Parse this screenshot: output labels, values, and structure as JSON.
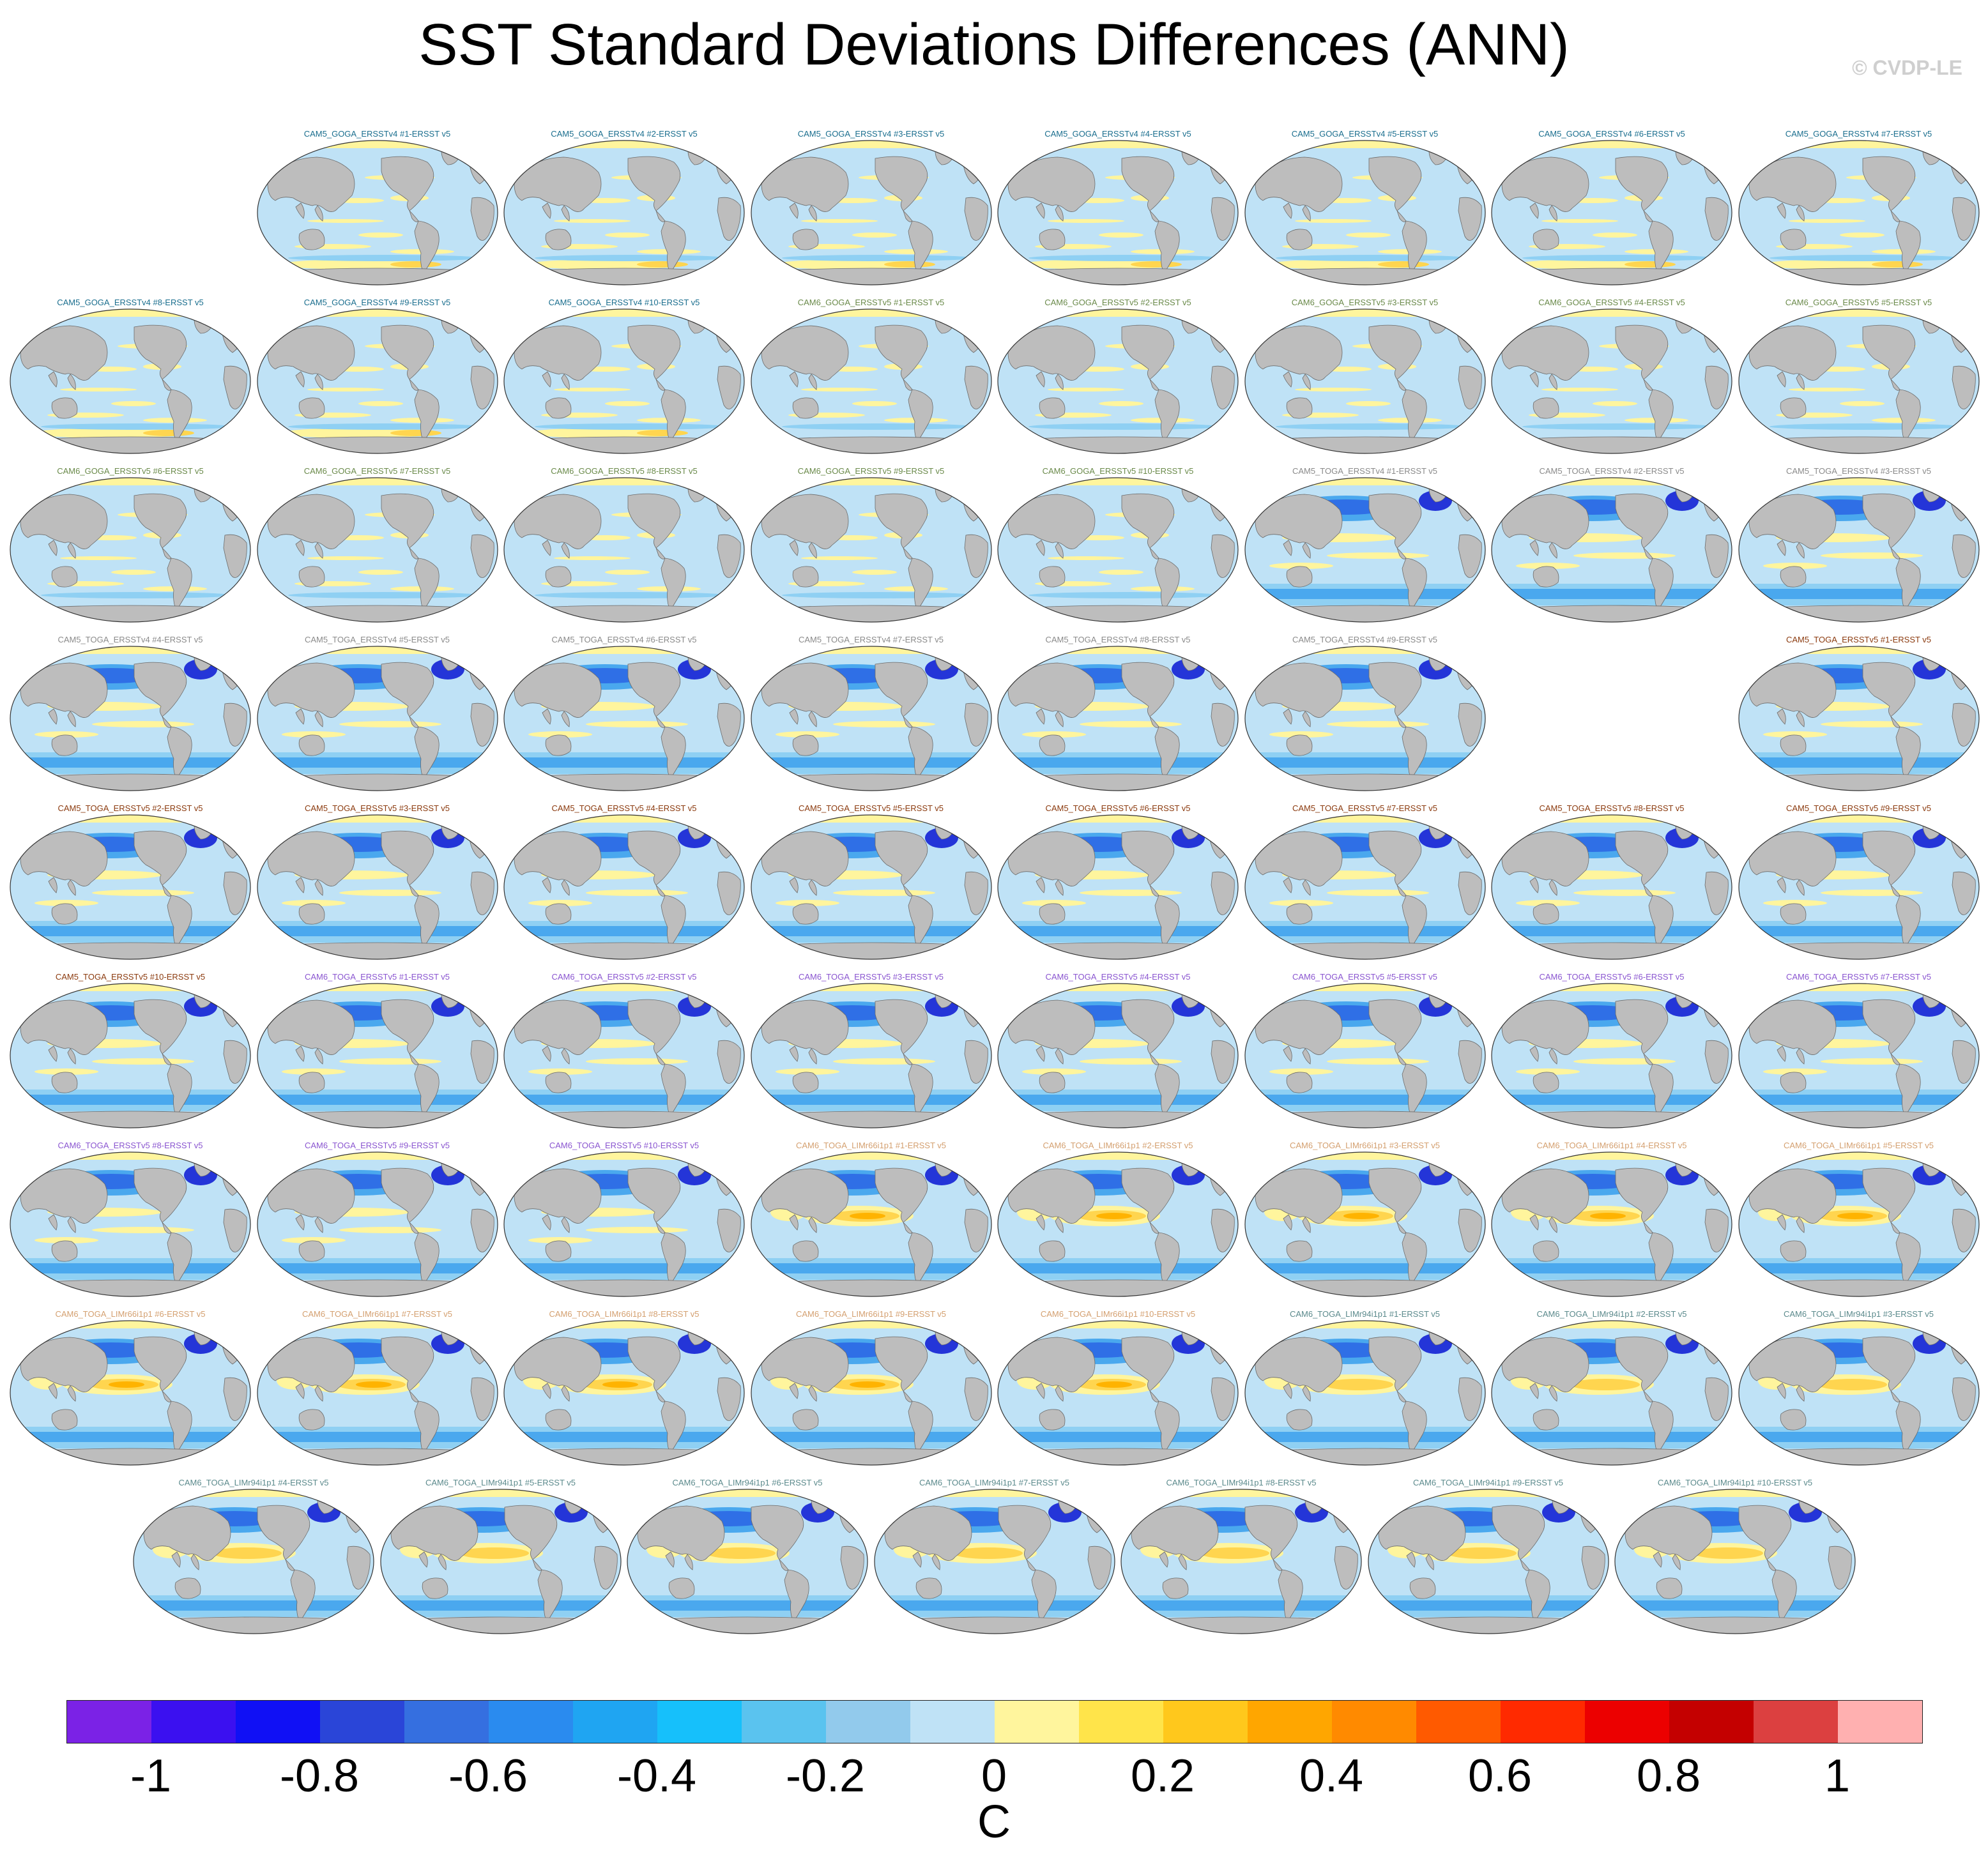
{
  "title": "SST Standard Deviations Differences (ANN)",
  "credit": "© CVDP-LE",
  "colors": {
    "ocean_base": "#bfe2f6",
    "land": "#bdbdbd",
    "positive_weak": "#fff59d",
    "positive_mid": "#ffd54f",
    "positive_strong": "#ffb300",
    "negative_weak": "#8fd0f3",
    "negative_mid": "#4aa8ee",
    "negative_strong": "#2f6fe6",
    "negative_deep": "#2435d8",
    "title_cam5_goga_v4": "#1a6e8e",
    "title_cam6_goga_v5": "#6a8a4a",
    "title_cam5_toga_v4": "#8a8a8a",
    "title_cam5_toga_v5": "#8b3a0e",
    "title_cam6_toga_v5": "#8a55d0",
    "title_cam6_toga_limr66": "#d4a070",
    "title_cam6_toga_limr94": "#5b8a8c"
  },
  "panels": [
    {
      "title": "CAM5_GOGA_ERSSTv4 #1-ERSST v5",
      "group": "cam5_goga_v4"
    },
    {
      "title": "CAM5_GOGA_ERSSTv4 #2-ERSST v5",
      "group": "cam5_goga_v4"
    },
    {
      "title": "CAM5_GOGA_ERSSTv4 #3-ERSST v5",
      "group": "cam5_goga_v4"
    },
    {
      "title": "CAM5_GOGA_ERSSTv4 #4-ERSST v5",
      "group": "cam5_goga_v4"
    },
    {
      "title": "CAM5_GOGA_ERSSTv4 #5-ERSST v5",
      "group": "cam5_goga_v4"
    },
    {
      "title": "CAM5_GOGA_ERSSTv4 #6-ERSST v5",
      "group": "cam5_goga_v4"
    },
    {
      "title": "CAM5_GOGA_ERSSTv4 #7-ERSST v5",
      "group": "cam5_goga_v4"
    },
    {
      "title": "CAM5_GOGA_ERSSTv4 #8-ERSST v5",
      "group": "cam5_goga_v4"
    },
    {
      "title": "CAM5_GOGA_ERSSTv4 #9-ERSST v5",
      "group": "cam5_goga_v4"
    },
    {
      "title": "CAM5_GOGA_ERSSTv4 #10-ERSST v5",
      "group": "cam5_goga_v4"
    },
    {
      "title": "CAM6_GOGA_ERSSTv5 #1-ERSST v5",
      "group": "cam6_goga_v5"
    },
    {
      "title": "CAM6_GOGA_ERSSTv5 #2-ERSST v5",
      "group": "cam6_goga_v5"
    },
    {
      "title": "CAM6_GOGA_ERSSTv5 #3-ERSST v5",
      "group": "cam6_goga_v5"
    },
    {
      "title": "CAM6_GOGA_ERSSTv5 #4-ERSST v5",
      "group": "cam6_goga_v5"
    },
    {
      "title": "CAM6_GOGA_ERSSTv5 #5-ERSST v5",
      "group": "cam6_goga_v5"
    },
    {
      "title": "CAM6_GOGA_ERSSTv5 #6-ERSST v5",
      "group": "cam6_goga_v5"
    },
    {
      "title": "CAM6_GOGA_ERSSTv5 #7-ERSST v5",
      "group": "cam6_goga_v5"
    },
    {
      "title": "CAM6_GOGA_ERSSTv5 #8-ERSST v5",
      "group": "cam6_goga_v5"
    },
    {
      "title": "CAM6_GOGA_ERSSTv5 #9-ERSST v5",
      "group": "cam6_goga_v5"
    },
    {
      "title": "CAM6_GOGA_ERSSTv5 #10-ERSST v5",
      "group": "cam6_goga_v5"
    },
    {
      "title": "CAM5_TOGA_ERSSTv4 #1-ERSST v5",
      "group": "cam5_toga_v4"
    },
    {
      "title": "CAM5_TOGA_ERSSTv4 #2-ERSST v5",
      "group": "cam5_toga_v4"
    },
    {
      "title": "CAM5_TOGA_ERSSTv4 #3-ERSST v5",
      "group": "cam5_toga_v4"
    },
    {
      "title": "CAM5_TOGA_ERSSTv4 #4-ERSST v5",
      "group": "cam5_toga_v4"
    },
    {
      "title": "CAM5_TOGA_ERSSTv4 #5-ERSST v5",
      "group": "cam5_toga_v4"
    },
    {
      "title": "CAM5_TOGA_ERSSTv4 #6-ERSST v5",
      "group": "cam5_toga_v4"
    },
    {
      "title": "CAM5_TOGA_ERSSTv4 #7-ERSST v5",
      "group": "cam5_toga_v4"
    },
    {
      "title": "CAM5_TOGA_ERSSTv4 #8-ERSST v5",
      "group": "cam5_toga_v4"
    },
    {
      "title": "CAM5_TOGA_ERSSTv4 #9-ERSST v5",
      "group": "cam5_toga_v4"
    },
    {
      "title": "CAM5_TOGA_ERSSTv5 #1-ERSST v5",
      "group": "cam5_toga_v5"
    },
    {
      "title": "CAM5_TOGA_ERSSTv5 #2-ERSST v5",
      "group": "cam5_toga_v5"
    },
    {
      "title": "CAM5_TOGA_ERSSTv5 #3-ERSST v5",
      "group": "cam5_toga_v5"
    },
    {
      "title": "CAM5_TOGA_ERSSTv5 #4-ERSST v5",
      "group": "cam5_toga_v5"
    },
    {
      "title": "CAM5_TOGA_ERSSTv5 #5-ERSST v5",
      "group": "cam5_toga_v5"
    },
    {
      "title": "CAM5_TOGA_ERSSTv5 #6-ERSST v5",
      "group": "cam5_toga_v5"
    },
    {
      "title": "CAM5_TOGA_ERSSTv5 #7-ERSST v5",
      "group": "cam5_toga_v5"
    },
    {
      "title": "CAM5_TOGA_ERSSTv5 #8-ERSST v5",
      "group": "cam5_toga_v5"
    },
    {
      "title": "CAM5_TOGA_ERSSTv5 #9-ERSST v5",
      "group": "cam5_toga_v5"
    },
    {
      "title": "CAM5_TOGA_ERSSTv5 #10-ERSST v5",
      "group": "cam5_toga_v5"
    },
    {
      "title": "CAM6_TOGA_ERSSTv5 #1-ERSST v5",
      "group": "cam6_toga_v5"
    },
    {
      "title": "CAM6_TOGA_ERSSTv5 #2-ERSST v5",
      "group": "cam6_toga_v5"
    },
    {
      "title": "CAM6_TOGA_ERSSTv5 #3-ERSST v5",
      "group": "cam6_toga_v5"
    },
    {
      "title": "CAM6_TOGA_ERSSTv5 #4-ERSST v5",
      "group": "cam6_toga_v5"
    },
    {
      "title": "CAM6_TOGA_ERSSTv5 #5-ERSST v5",
      "group": "cam6_toga_v5"
    },
    {
      "title": "CAM6_TOGA_ERSSTv5 #6-ERSST v5",
      "group": "cam6_toga_v5"
    },
    {
      "title": "CAM6_TOGA_ERSSTv5 #7-ERSST v5",
      "group": "cam6_toga_v5"
    },
    {
      "title": "CAM6_TOGA_ERSSTv5 #8-ERSST v5",
      "group": "cam6_toga_v5"
    },
    {
      "title": "CAM6_TOGA_ERSSTv5 #9-ERSST v5",
      "group": "cam6_toga_v5"
    },
    {
      "title": "CAM6_TOGA_ERSSTv5 #10-ERSST v5",
      "group": "cam6_toga_v5"
    },
    {
      "title": "CAM6_TOGA_LIMr66i1p1 #1-ERSST v5",
      "group": "cam6_toga_limr66"
    },
    {
      "title": "CAM6_TOGA_LIMr66i1p1 #2-ERSST v5",
      "group": "cam6_toga_limr66"
    },
    {
      "title": "CAM6_TOGA_LIMr66i1p1 #3-ERSST v5",
      "group": "cam6_toga_limr66"
    },
    {
      "title": "CAM6_TOGA_LIMr66i1p1 #4-ERSST v5",
      "group": "cam6_toga_limr66"
    },
    {
      "title": "CAM6_TOGA_LIMr66i1p1 #5-ERSST v5",
      "group": "cam6_toga_limr66"
    },
    {
      "title": "CAM6_TOGA_LIMr66i1p1 #6-ERSST v5",
      "group": "cam6_toga_limr66"
    },
    {
      "title": "CAM6_TOGA_LIMr66i1p1 #7-ERSST v5",
      "group": "cam6_toga_limr66"
    },
    {
      "title": "CAM6_TOGA_LIMr66i1p1 #8-ERSST v5",
      "group": "cam6_toga_limr66"
    },
    {
      "title": "CAM6_TOGA_LIMr66i1p1 #9-ERSST v5",
      "group": "cam6_toga_limr66"
    },
    {
      "title": "CAM6_TOGA_LIMr66i1p1 #10-ERSST v5",
      "group": "cam6_toga_limr66"
    },
    {
      "title": "CAM6_TOGA_LIMr94i1p1 #1-ERSST v5",
      "group": "cam6_toga_limr94"
    },
    {
      "title": "CAM6_TOGA_LIMr94i1p1 #2-ERSST v5",
      "group": "cam6_toga_limr94"
    },
    {
      "title": "CAM6_TOGA_LIMr94i1p1 #3-ERSST v5",
      "group": "cam6_toga_limr94"
    },
    {
      "title": "CAM6_TOGA_LIMr94i1p1 #4-ERSST v5",
      "group": "cam6_toga_limr94"
    },
    {
      "title": "CAM6_TOGA_LIMr94i1p1 #5-ERSST v5",
      "group": "cam6_toga_limr94"
    },
    {
      "title": "CAM6_TOGA_LIMr94i1p1 #6-ERSST v5",
      "group": "cam6_toga_limr94"
    },
    {
      "title": "CAM6_TOGA_LIMr94i1p1 #7-ERSST v5",
      "group": "cam6_toga_limr94"
    },
    {
      "title": "CAM6_TOGA_LIMr94i1p1 #8-ERSST v5",
      "group": "cam6_toga_limr94"
    },
    {
      "title": "CAM6_TOGA_LIMr94i1p1 #9-ERSST v5",
      "group": "cam6_toga_limr94"
    },
    {
      "title": "CAM6_TOGA_LIMr94i1p1 #10-ERSST v5",
      "group": "cam6_toga_limr94"
    }
  ],
  "colorbar": {
    "colors": [
      "#7b22e6",
      "#3b10f0",
      "#1010f5",
      "#2a45d8",
      "#356fe0",
      "#2a8bef",
      "#1fa5f2",
      "#16c0fb",
      "#5ac3ef",
      "#92caec",
      "#bfe2f6",
      "#fff59d",
      "#ffe44a",
      "#ffc81c",
      "#ffa600",
      "#ff8a00",
      "#ff5a00",
      "#ff2a00",
      "#ec0000",
      "#c40000",
      "#dc4040",
      "#ffb0b0"
    ],
    "tick_labels": [
      "-1",
      "-0.8",
      "-0.6",
      "-0.4",
      "-0.2",
      "0",
      "0.2",
      "0.4",
      "0.6",
      "0.8",
      "1"
    ],
    "units": "C"
  }
}
